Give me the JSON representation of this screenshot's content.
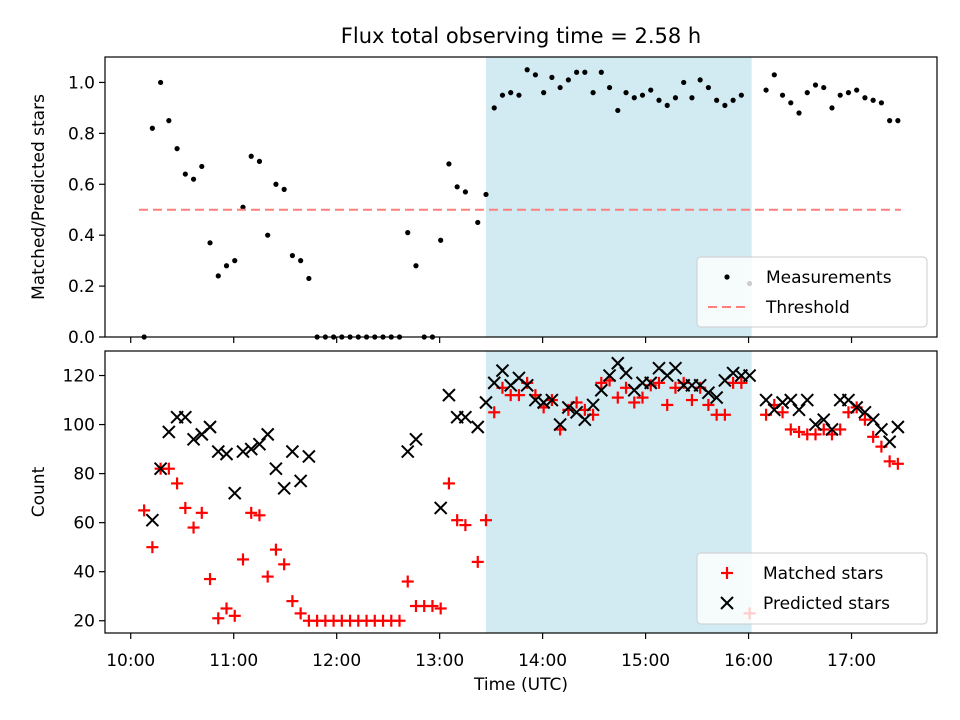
{
  "figure": {
    "title": "Flux total observing time = 2.58 h",
    "xlabel": "Time (UTC)",
    "xticks": [
      "10:00",
      "11:00",
      "12:00",
      "13:00",
      "14:00",
      "15:00",
      "16:00",
      "17:00"
    ],
    "xtick_hours": [
      10,
      11,
      12,
      13,
      14,
      15,
      16,
      17
    ],
    "xlim": [
      9.75,
      17.83
    ],
    "highlight": {
      "from": 13.45,
      "to": 16.03,
      "color": "#add8e6"
    }
  },
  "chart_data": [
    {
      "type": "scatter",
      "ylabel": "Matched/Predicted stars",
      "ylim": [
        0,
        1.1
      ],
      "yticks": [
        "0.0",
        "0.2",
        "0.4",
        "0.6",
        "0.8",
        "1.0"
      ],
      "ytick_values": [
        0,
        0.2,
        0.4,
        0.6,
        0.8,
        1.0
      ],
      "legend": {
        "placement": "lower-right"
      },
      "series": [
        {
          "name": "Measurements",
          "marker": "dot",
          "color": "#000000",
          "x": [
            10.13,
            10.21,
            10.29,
            10.37,
            10.45,
            10.53,
            10.61,
            10.69,
            10.77,
            10.85,
            10.93,
            11.01,
            11.09,
            11.17,
            11.25,
            11.33,
            11.41,
            11.49,
            11.57,
            11.65,
            11.73,
            11.81,
            11.89,
            11.97,
            12.05,
            12.13,
            12.21,
            12.29,
            12.37,
            12.45,
            12.53,
            12.61,
            12.69,
            12.77,
            12.85,
            12.93,
            13.01,
            13.09,
            13.17,
            13.25,
            13.37,
            13.45,
            13.53,
            13.61,
            13.69,
            13.77,
            13.85,
            13.93,
            14.01,
            14.09,
            14.17,
            14.25,
            14.33,
            14.41,
            14.49,
            14.57,
            14.65,
            14.73,
            14.81,
            14.89,
            14.97,
            15.05,
            15.13,
            15.21,
            15.29,
            15.37,
            15.45,
            15.53,
            15.61,
            15.69,
            15.77,
            15.85,
            15.93,
            16.01,
            16.17,
            16.25,
            16.33,
            16.41,
            16.49,
            16.57,
            16.65,
            16.73,
            16.81,
            16.89,
            16.97,
            17.05,
            17.13,
            17.21,
            17.29,
            17.37,
            17.45
          ],
          "y": [
            0.0,
            0.82,
            1.0,
            0.85,
            0.74,
            0.64,
            0.62,
            0.67,
            0.37,
            0.24,
            0.28,
            0.3,
            0.51,
            0.71,
            0.69,
            0.4,
            0.6,
            0.58,
            0.32,
            0.3,
            0.23,
            0.0,
            0.0,
            0.0,
            0.0,
            0.0,
            0.0,
            0.0,
            0.0,
            0.0,
            0.0,
            0.0,
            0.41,
            0.28,
            0.0,
            0.0,
            0.38,
            0.68,
            0.59,
            0.57,
            0.45,
            0.56,
            0.9,
            0.95,
            0.96,
            0.95,
            1.05,
            1.03,
            0.96,
            1.02,
            0.98,
            1.01,
            1.04,
            1.04,
            0.96,
            1.04,
            0.98,
            0.89,
            0.96,
            0.94,
            0.95,
            0.97,
            0.93,
            0.91,
            0.94,
            1.0,
            0.94,
            1.01,
            0.98,
            0.93,
            0.91,
            0.93,
            0.95,
            0.21,
            0.97,
            1.03,
            0.95,
            0.92,
            0.88,
            0.96,
            0.99,
            0.98,
            0.9,
            0.95,
            0.96,
            0.97,
            0.94,
            0.93,
            0.92,
            0.85,
            0.85
          ]
        },
        {
          "name": "Threshold",
          "marker": "dashed-line",
          "color": "#ff7f7f",
          "x": [
            10.08,
            17.48
          ],
          "y": [
            0.5,
            0.5
          ]
        }
      ]
    },
    {
      "type": "scatter",
      "ylabel": "Count",
      "ylim": [
        15,
        130
      ],
      "yticks": [
        "20",
        "40",
        "60",
        "80",
        "100",
        "120"
      ],
      "ytick_values": [
        20,
        40,
        60,
        80,
        100,
        120
      ],
      "legend": {
        "placement": "lower-right"
      },
      "series": [
        {
          "name": "Matched stars",
          "marker": "plus",
          "color": "#ff0000",
          "x": [
            10.13,
            10.21,
            10.29,
            10.37,
            10.45,
            10.53,
            10.61,
            10.69,
            10.77,
            10.85,
            10.93,
            11.01,
            11.09,
            11.17,
            11.25,
            11.33,
            11.41,
            11.49,
            11.57,
            11.65,
            11.73,
            11.81,
            11.89,
            11.97,
            12.05,
            12.13,
            12.21,
            12.29,
            12.37,
            12.45,
            12.53,
            12.61,
            12.69,
            12.77,
            12.85,
            12.93,
            13.01,
            13.09,
            13.17,
            13.25,
            13.37,
            13.45,
            13.53,
            13.61,
            13.69,
            13.77,
            13.85,
            13.93,
            14.01,
            14.09,
            14.17,
            14.25,
            14.33,
            14.41,
            14.49,
            14.57,
            14.65,
            14.73,
            14.81,
            14.89,
            14.97,
            15.05,
            15.13,
            15.21,
            15.29,
            15.37,
            15.45,
            15.53,
            15.61,
            15.69,
            15.77,
            15.85,
            15.93,
            16.01,
            16.17,
            16.25,
            16.33,
            16.41,
            16.49,
            16.57,
            16.65,
            16.73,
            16.81,
            16.89,
            16.97,
            17.05,
            17.13,
            17.21,
            17.29,
            17.37,
            17.45
          ],
          "y": [
            65,
            50,
            82,
            82,
            76,
            66,
            58,
            64,
            37,
            21,
            25,
            22,
            45,
            64,
            63,
            38,
            49,
            43,
            28,
            23,
            20,
            20,
            20,
            20,
            20,
            20,
            20,
            20,
            20,
            20,
            20,
            20,
            36,
            26,
            26,
            26,
            25,
            76,
            61,
            59,
            44,
            61,
            105,
            115,
            112,
            112,
            117,
            112,
            107,
            110,
            98,
            106,
            109,
            106,
            104,
            117,
            118,
            111,
            115,
            109,
            111,
            116,
            117,
            108,
            115,
            117,
            110,
            115,
            108,
            104,
            104,
            117,
            117,
            23,
            104,
            108,
            105,
            98,
            97,
            96,
            96,
            98,
            96,
            98,
            105,
            107,
            102,
            95,
            91,
            85,
            84
          ]
        },
        {
          "name": "Predicted stars",
          "marker": "x",
          "color": "#000000",
          "x": [
            10.21,
            10.29,
            10.37,
            10.45,
            10.53,
            10.61,
            10.69,
            10.77,
            10.85,
            10.93,
            11.01,
            11.09,
            11.17,
            11.25,
            11.33,
            11.41,
            11.49,
            11.57,
            11.65,
            11.73,
            12.69,
            12.77,
            13.01,
            13.09,
            13.17,
            13.25,
            13.37,
            13.45,
            13.53,
            13.61,
            13.69,
            13.77,
            13.85,
            13.93,
            14.01,
            14.09,
            14.17,
            14.25,
            14.33,
            14.41,
            14.49,
            14.57,
            14.65,
            14.73,
            14.81,
            14.89,
            14.97,
            15.05,
            15.13,
            15.21,
            15.29,
            15.37,
            15.45,
            15.53,
            15.61,
            15.69,
            15.77,
            15.85,
            15.93,
            16.01,
            16.17,
            16.25,
            16.33,
            16.41,
            16.49,
            16.57,
            16.65,
            16.73,
            16.81,
            16.89,
            16.97,
            17.05,
            17.13,
            17.21,
            17.29,
            17.37,
            17.45
          ],
          "y": [
            61,
            82,
            97,
            103,
            103,
            94,
            96,
            99,
            89,
            88,
            72,
            89,
            90,
            92,
            96,
            82,
            74,
            89,
            77,
            87,
            89,
            94,
            66,
            112,
            103,
            103,
            99,
            109,
            117,
            122,
            116,
            119,
            116,
            110,
            109,
            110,
            100,
            107,
            105,
            102,
            108,
            114,
            120,
            125,
            121,
            114,
            117,
            117,
            123,
            120,
            123,
            116,
            116,
            116,
            113,
            111,
            118,
            121,
            120,
            120,
            110,
            106,
            109,
            110,
            106,
            110,
            100,
            102,
            98,
            110,
            110,
            107,
            105,
            102,
            98,
            93,
            99
          ]
        }
      ]
    }
  ]
}
